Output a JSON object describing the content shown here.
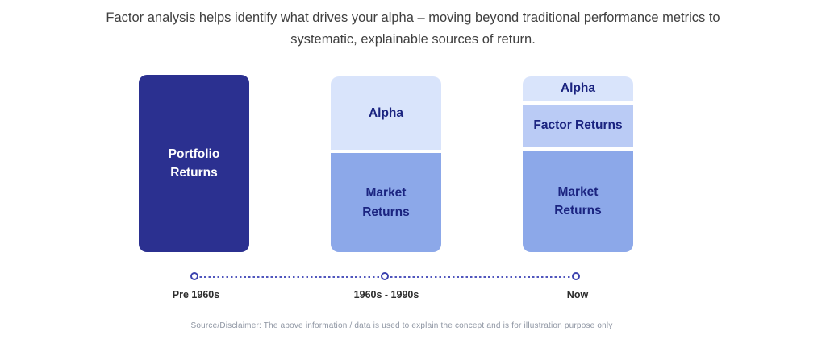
{
  "header": {
    "line1": "Factor analysis helps identify what drives your alpha – moving beyond traditional performance metrics to",
    "line2": "systematic, explainable sources of return."
  },
  "colors": {
    "portfolio_box": "#2b3090",
    "alpha_box": "#d9e4fb",
    "factor_box": "#bacbf5",
    "market_box": "#8ca8e9",
    "box_text_navy": "#1b2480",
    "box_text_white": "#ffffff",
    "timeline_indigo": "#3c42ae",
    "era_label_text": "#2d2d2d",
    "header_text": "#3f3f3f",
    "disclaimer_text": "#8f96a3"
  },
  "columns": [
    {
      "segments": [
        {
          "label": "Portfolio\nReturns",
          "bg": "#2b3090",
          "fg": "#ffffff"
        }
      ]
    },
    {
      "segments": [
        {
          "label": "Alpha",
          "bg": "#d9e4fb",
          "fg": "#1b2480"
        },
        {
          "label": "Market\nReturns",
          "bg": "#8ca8e9",
          "fg": "#1b2480"
        }
      ]
    },
    {
      "segments": [
        {
          "label": "Alpha",
          "bg": "#d9e4fb",
          "fg": "#1b2480"
        },
        {
          "label": "Factor Returns",
          "bg": "#bacbf5",
          "fg": "#1b2480"
        },
        {
          "label": "Market\nReturns",
          "bg": "#8ca8e9",
          "fg": "#1b2480"
        }
      ]
    }
  ],
  "timeline": {
    "eras": [
      "Pre 1960s",
      "1960s - 1990s",
      "Now"
    ]
  },
  "disclaimer": "Source/Disclaimer: The above information / data is used to explain the concept and is for illustration purpose only"
}
